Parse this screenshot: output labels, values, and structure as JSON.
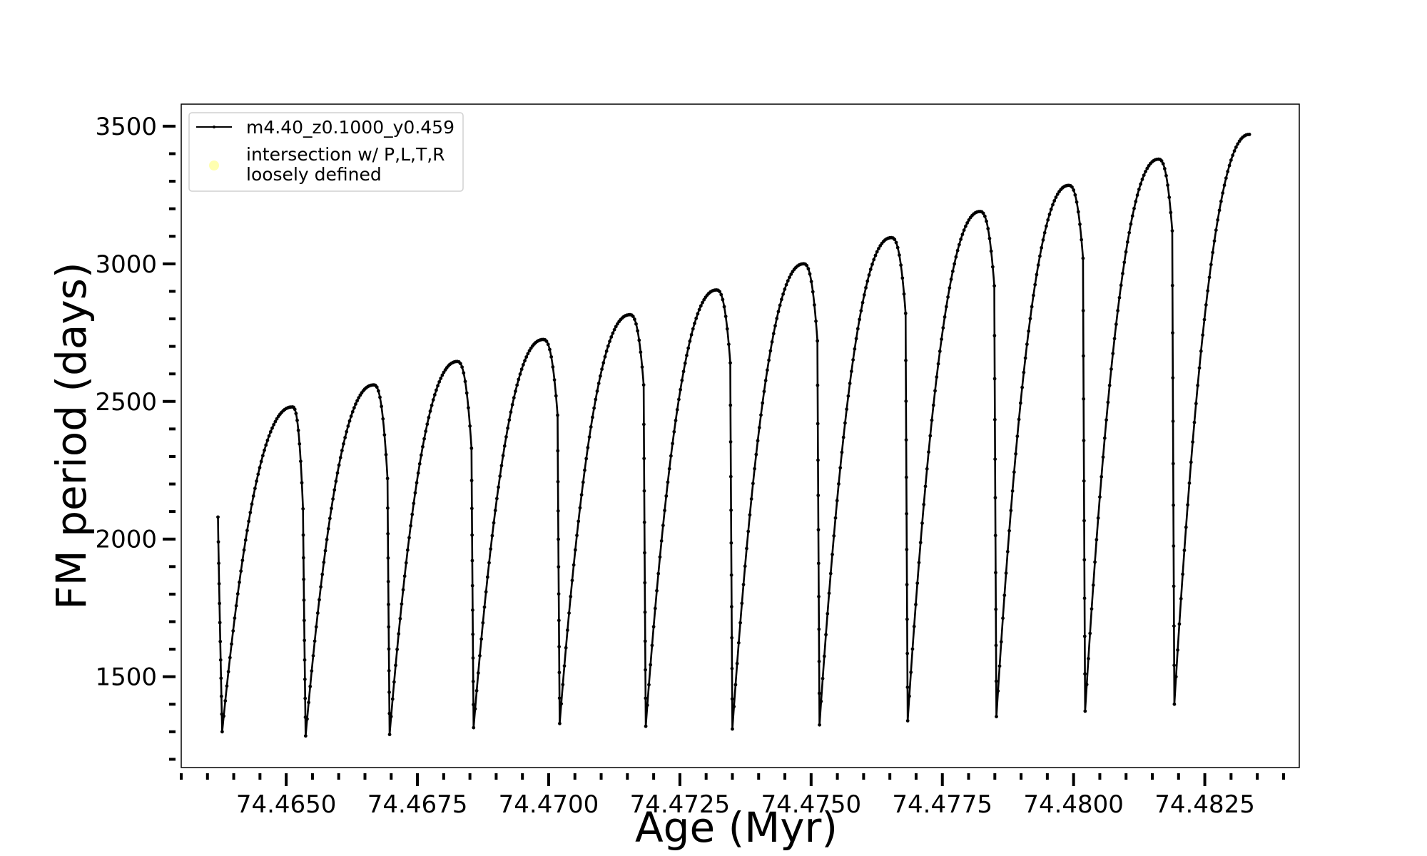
{
  "chart_data": {
    "type": "line",
    "title": "",
    "xlabel": "Age (Myr)",
    "ylabel": "FM period (days)",
    "xlim": [
      74.463,
      74.4843
    ],
    "ylim": [
      1170,
      3580
    ],
    "x_ticks": [
      74.465,
      74.4675,
      74.47,
      74.4725,
      74.475,
      74.4775,
      74.48,
      74.4825
    ],
    "x_tick_labels": [
      "74.4650",
      "74.4675",
      "74.4700",
      "74.4725",
      "74.4750",
      "74.4775",
      "74.4800",
      "74.4825"
    ],
    "y_ticks": [
      1500,
      2000,
      2500,
      3000,
      3500
    ],
    "y_tick_labels": [
      "1500",
      "2000",
      "2500",
      "3000",
      "3500"
    ],
    "x_minor_step": 0.0005,
    "y_minor_step": 100,
    "grid": false,
    "legend_position": "top-left",
    "series": [
      {
        "name": "m4.40_z0.1000_y0.459",
        "color": "#000000",
        "marker": "dot",
        "start": [
          74.4637,
          2080
        ],
        "cycles": [
          {
            "min": [
              74.46378,
              1300
            ],
            "peak": [
              74.46512,
              2480
            ],
            "end": [
              74.46532,
              2110
            ]
          },
          {
            "min": [
              74.46537,
              1285
            ],
            "peak": [
              74.46667,
              2560
            ],
            "end": [
              74.46693,
              2220
            ]
          },
          {
            "min": [
              74.46697,
              1290
            ],
            "peak": [
              74.46826,
              2645
            ],
            "end": [
              74.46853,
              2330
            ]
          },
          {
            "min": [
              74.46857,
              1315
            ],
            "peak": [
              74.4699,
              2725
            ],
            "end": [
              74.47017,
              2450
            ]
          },
          {
            "min": [
              74.47021,
              1330
            ],
            "peak": [
              74.47155,
              2815
            ],
            "end": [
              74.47181,
              2560
            ]
          },
          {
            "min": [
              74.47185,
              1320
            ],
            "peak": [
              74.4732,
              2905
            ],
            "end": [
              74.47346,
              2640
            ]
          },
          {
            "min": [
              74.4735,
              1310
            ],
            "peak": [
              74.47486,
              3000
            ],
            "end": [
              74.47512,
              2720
            ]
          },
          {
            "min": [
              74.47516,
              1325
            ],
            "peak": [
              74.47653,
              3095
            ],
            "end": [
              74.4768,
              2820
            ]
          },
          {
            "min": [
              74.47684,
              1340
            ],
            "peak": [
              74.47822,
              3190
            ],
            "end": [
              74.47849,
              2920
            ]
          },
          {
            "min": [
              74.47853,
              1355
            ],
            "peak": [
              74.47991,
              3285
            ],
            "end": [
              74.48018,
              3020
            ]
          },
          {
            "min": [
              74.48022,
              1375
            ],
            "peak": [
              74.48162,
              3380
            ],
            "end": [
              74.48188,
              3120
            ]
          },
          {
            "min": [
              74.48192,
              1400
            ],
            "peak": [
              74.48335,
              3470
            ],
            "end": null
          }
        ]
      },
      {
        "name": "intersection w/ P,L,T,R\nloosely defined",
        "color": "#ffffb0",
        "marker": "circle",
        "points": []
      }
    ]
  }
}
